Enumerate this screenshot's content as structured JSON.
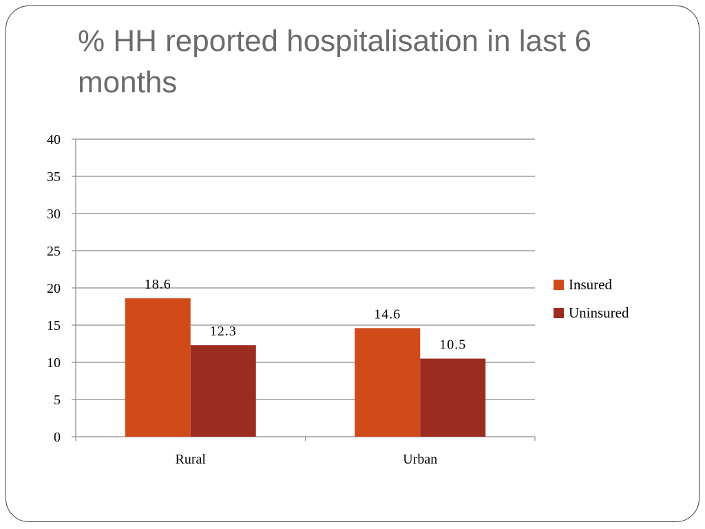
{
  "slide": {
    "title": "% HH reported hospitalisation in last 6 months"
  },
  "chart_data": {
    "type": "bar",
    "categories": [
      "Rural",
      "Urban"
    ],
    "series": [
      {
        "name": "Insured",
        "values": [
          18.6,
          14.6
        ],
        "color": "#d14a1a"
      },
      {
        "name": "Uninsured",
        "values": [
          12.3,
          10.5
        ],
        "color": "#9c2c20"
      }
    ],
    "data_labels": [
      [
        "18.6",
        "14.6"
      ],
      [
        "12.3",
        "10.5"
      ]
    ],
    "title": "",
    "xlabel": "",
    "ylabel": "",
    "ylim": [
      0,
      40
    ],
    "yticks": [
      0,
      5,
      10,
      15,
      20,
      25,
      30,
      35,
      40
    ],
    "grid": true,
    "legend_position": "right"
  }
}
